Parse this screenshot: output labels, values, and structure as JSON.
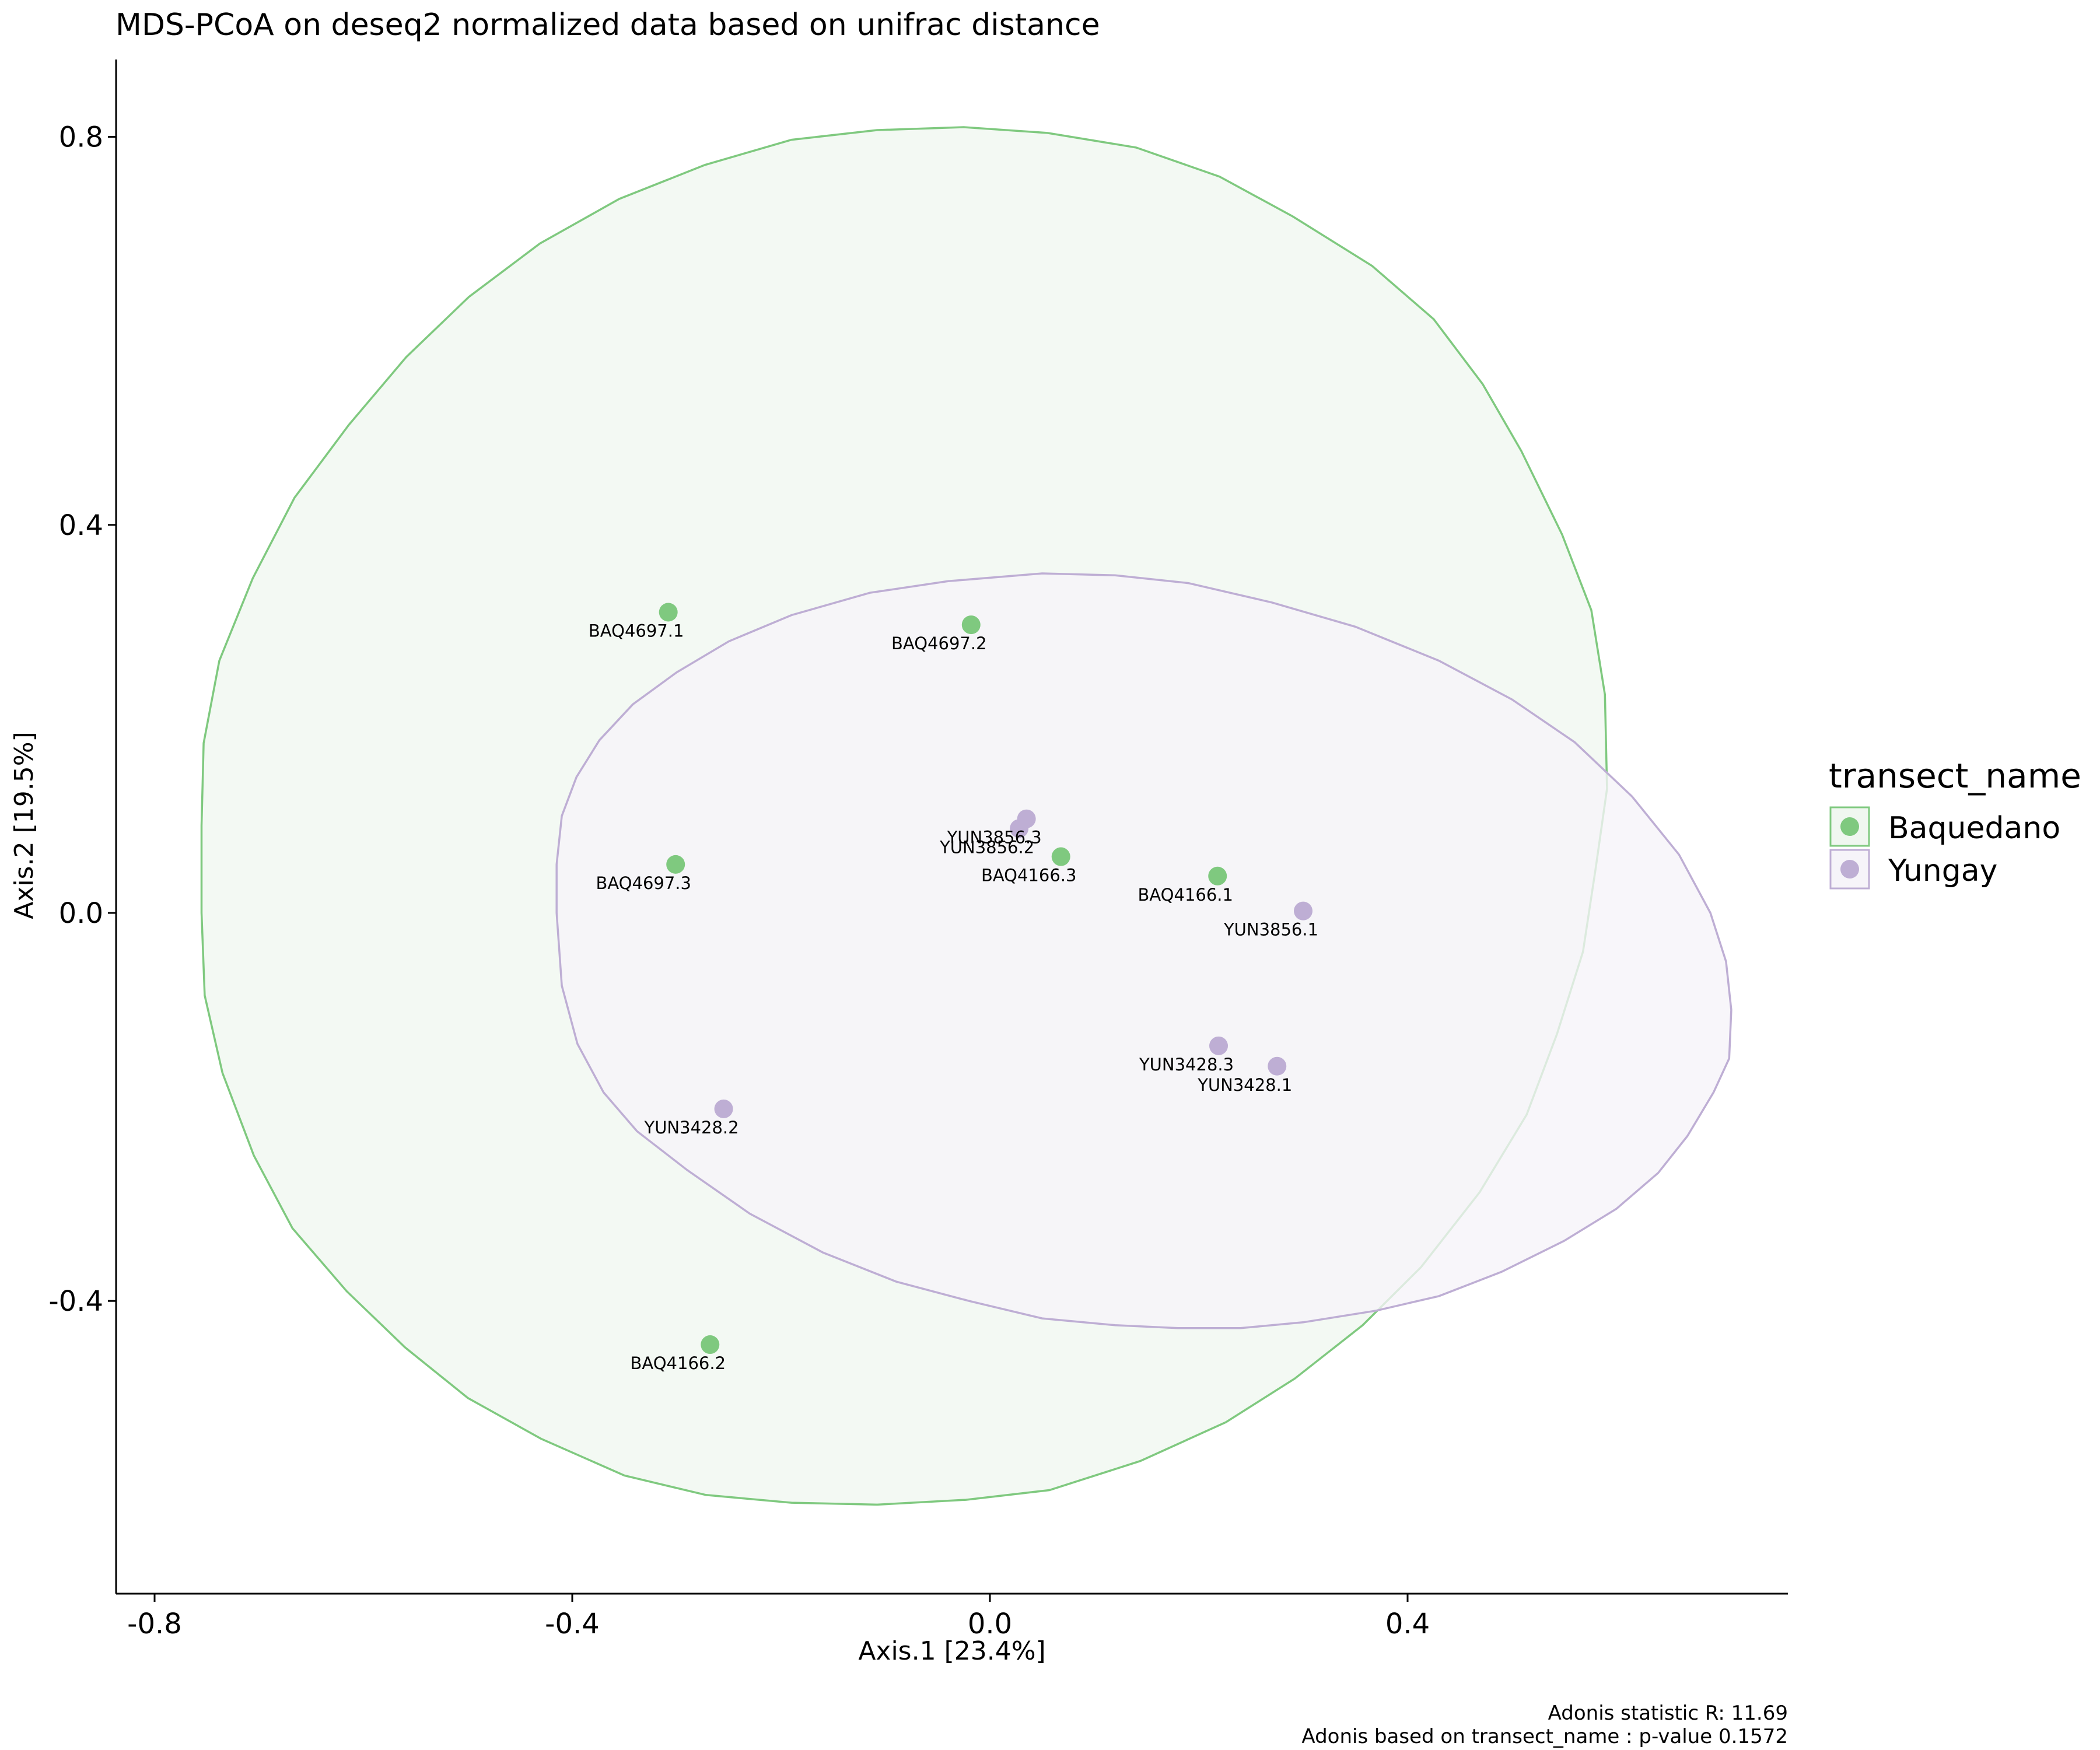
{
  "chart_data": {
    "type": "scatter",
    "title": "MDS-PCoA on deseq2 normalized data based on unifrac distance",
    "xlabel": "Axis.1   [23.4%]",
    "ylabel": "Axis.2   [19.5%]",
    "xlim": [
      -0.84,
      0.76
    ],
    "ylim": [
      -0.7,
      0.88
    ],
    "x_ticks": [
      -0.8,
      -0.4,
      0.0,
      0.4
    ],
    "x_tick_labels": [
      "-0.8",
      "-0.4",
      "0.0",
      "0.4"
    ],
    "y_ticks": [
      0.8,
      0.4,
      0.0,
      -0.4
    ],
    "y_tick_labels": [
      "0.8",
      "0.4",
      "0.0",
      "-0.4"
    ],
    "grid": false,
    "legend": {
      "title": "transect_name",
      "placement": "right",
      "entries": [
        "Baquedano",
        "Yungay"
      ]
    },
    "series": [
      {
        "name": "Baquedano",
        "color": "#7fc97f",
        "fill": "#f0f7f0",
        "points": [
          {
            "label": "BAQ4697.1",
            "x": -0.308,
            "y": 0.31
          },
          {
            "label": "BAQ4697.2",
            "x": -0.018,
            "y": 0.297
          },
          {
            "label": "BAQ4697.3",
            "x": -0.301,
            "y": 0.05
          },
          {
            "label": "BAQ4166.3",
            "x": 0.068,
            "y": 0.058
          },
          {
            "label": "BAQ4166.1",
            "x": 0.218,
            "y": 0.038
          },
          {
            "label": "BAQ4166.2",
            "x": -0.268,
            "y": -0.445
          }
        ],
        "ellipse": [
          [
            -0.755,
            0.09
          ],
          [
            -0.753,
            0.175
          ],
          [
            -0.738,
            0.26
          ],
          [
            -0.706,
            0.345
          ],
          [
            -0.666,
            0.428
          ],
          [
            -0.614,
            0.503
          ],
          [
            -0.559,
            0.573
          ],
          [
            -0.499,
            0.635
          ],
          [
            -0.431,
            0.69
          ],
          [
            -0.355,
            0.736
          ],
          [
            -0.273,
            0.771
          ],
          [
            -0.19,
            0.797
          ],
          [
            -0.108,
            0.807
          ],
          [
            -0.025,
            0.81
          ],
          [
            0.055,
            0.804
          ],
          [
            0.14,
            0.789
          ],
          [
            0.22,
            0.759
          ],
          [
            0.29,
            0.718
          ],
          [
            0.366,
            0.667
          ],
          [
            0.425,
            0.612
          ],
          [
            0.472,
            0.545
          ],
          [
            0.509,
            0.476
          ],
          [
            0.548,
            0.39
          ],
          [
            0.576,
            0.312
          ],
          [
            0.589,
            0.225
          ],
          [
            0.591,
            0.128
          ],
          [
            0.58,
            0.045
          ],
          [
            0.568,
            -0.04
          ],
          [
            0.543,
            -0.125
          ],
          [
            0.514,
            -0.208
          ],
          [
            0.469,
            -0.288
          ],
          [
            0.413,
            -0.365
          ],
          [
            0.357,
            -0.425
          ],
          [
            0.292,
            -0.48
          ],
          [
            0.226,
            -0.525
          ],
          [
            0.144,
            -0.565
          ],
          [
            0.057,
            -0.595
          ],
          [
            -0.023,
            -0.605
          ],
          [
            -0.108,
            -0.61
          ],
          [
            -0.19,
            -0.608
          ],
          [
            -0.272,
            -0.6
          ],
          [
            -0.35,
            -0.58
          ],
          [
            -0.43,
            -0.542
          ],
          [
            -0.5,
            -0.5
          ],
          [
            -0.56,
            -0.448
          ],
          [
            -0.616,
            -0.39
          ],
          [
            -0.668,
            -0.325
          ],
          [
            -0.705,
            -0.25
          ],
          [
            -0.735,
            -0.165
          ],
          [
            -0.752,
            -0.085
          ],
          [
            -0.755,
            0.0
          ],
          [
            -0.755,
            0.09
          ]
        ]
      },
      {
        "name": "Yungay",
        "color": "#beaed4",
        "fill": "#f6f4f9",
        "points": [
          {
            "label": "YUN3856.3",
            "x": 0.035,
            "y": 0.097
          },
          {
            "label": "YUN3856.2",
            "x": 0.028,
            "y": 0.087
          },
          {
            "label": "YUN3856.1",
            "x": 0.3,
            "y": 0.002
          },
          {
            "label": "YUN3428.3",
            "x": 0.219,
            "y": -0.137
          },
          {
            "label": "YUN3428.1",
            "x": 0.275,
            "y": -0.158
          },
          {
            "label": "YUN3428.2",
            "x": -0.255,
            "y": -0.202
          }
        ],
        "ellipse": [
          [
            -0.415,
            0.0
          ],
          [
            -0.415,
            0.05
          ],
          [
            -0.41,
            0.1
          ],
          [
            -0.396,
            0.14
          ],
          [
            -0.374,
            0.178
          ],
          [
            -0.342,
            0.215
          ],
          [
            -0.3,
            0.248
          ],
          [
            -0.25,
            0.28
          ],
          [
            -0.19,
            0.307
          ],
          [
            -0.115,
            0.33
          ],
          [
            -0.04,
            0.342
          ],
          [
            0.05,
            0.35
          ],
          [
            0.12,
            0.348
          ],
          [
            0.19,
            0.34
          ],
          [
            0.27,
            0.32
          ],
          [
            0.35,
            0.295
          ],
          [
            0.43,
            0.26
          ],
          [
            0.5,
            0.22
          ],
          [
            0.56,
            0.176
          ],
          [
            0.615,
            0.12
          ],
          [
            0.66,
            0.06
          ],
          [
            0.69,
            0.0
          ],
          [
            0.705,
            -0.05
          ],
          [
            0.71,
            -0.1
          ],
          [
            0.708,
            -0.15
          ],
          [
            0.693,
            -0.185
          ],
          [
            0.668,
            -0.23
          ],
          [
            0.64,
            -0.268
          ],
          [
            0.6,
            -0.305
          ],
          [
            0.55,
            -0.338
          ],
          [
            0.49,
            -0.37
          ],
          [
            0.43,
            -0.395
          ],
          [
            0.37,
            -0.41
          ],
          [
            0.3,
            -0.422
          ],
          [
            0.24,
            -0.428
          ],
          [
            0.18,
            -0.428
          ],
          [
            0.12,
            -0.425
          ],
          [
            0.05,
            -0.418
          ],
          [
            -0.02,
            -0.4
          ],
          [
            -0.09,
            -0.38
          ],
          [
            -0.16,
            -0.35
          ],
          [
            -0.23,
            -0.31
          ],
          [
            -0.29,
            -0.265
          ],
          [
            -0.338,
            -0.225
          ],
          [
            -0.37,
            -0.185
          ],
          [
            -0.395,
            -0.135
          ],
          [
            -0.41,
            -0.075
          ],
          [
            -0.415,
            0.0
          ]
        ]
      }
    ],
    "annotations": [
      "Adonis statistic R: 11.69",
      "Adonis based on  transect_name : p-value 0.1572"
    ]
  }
}
